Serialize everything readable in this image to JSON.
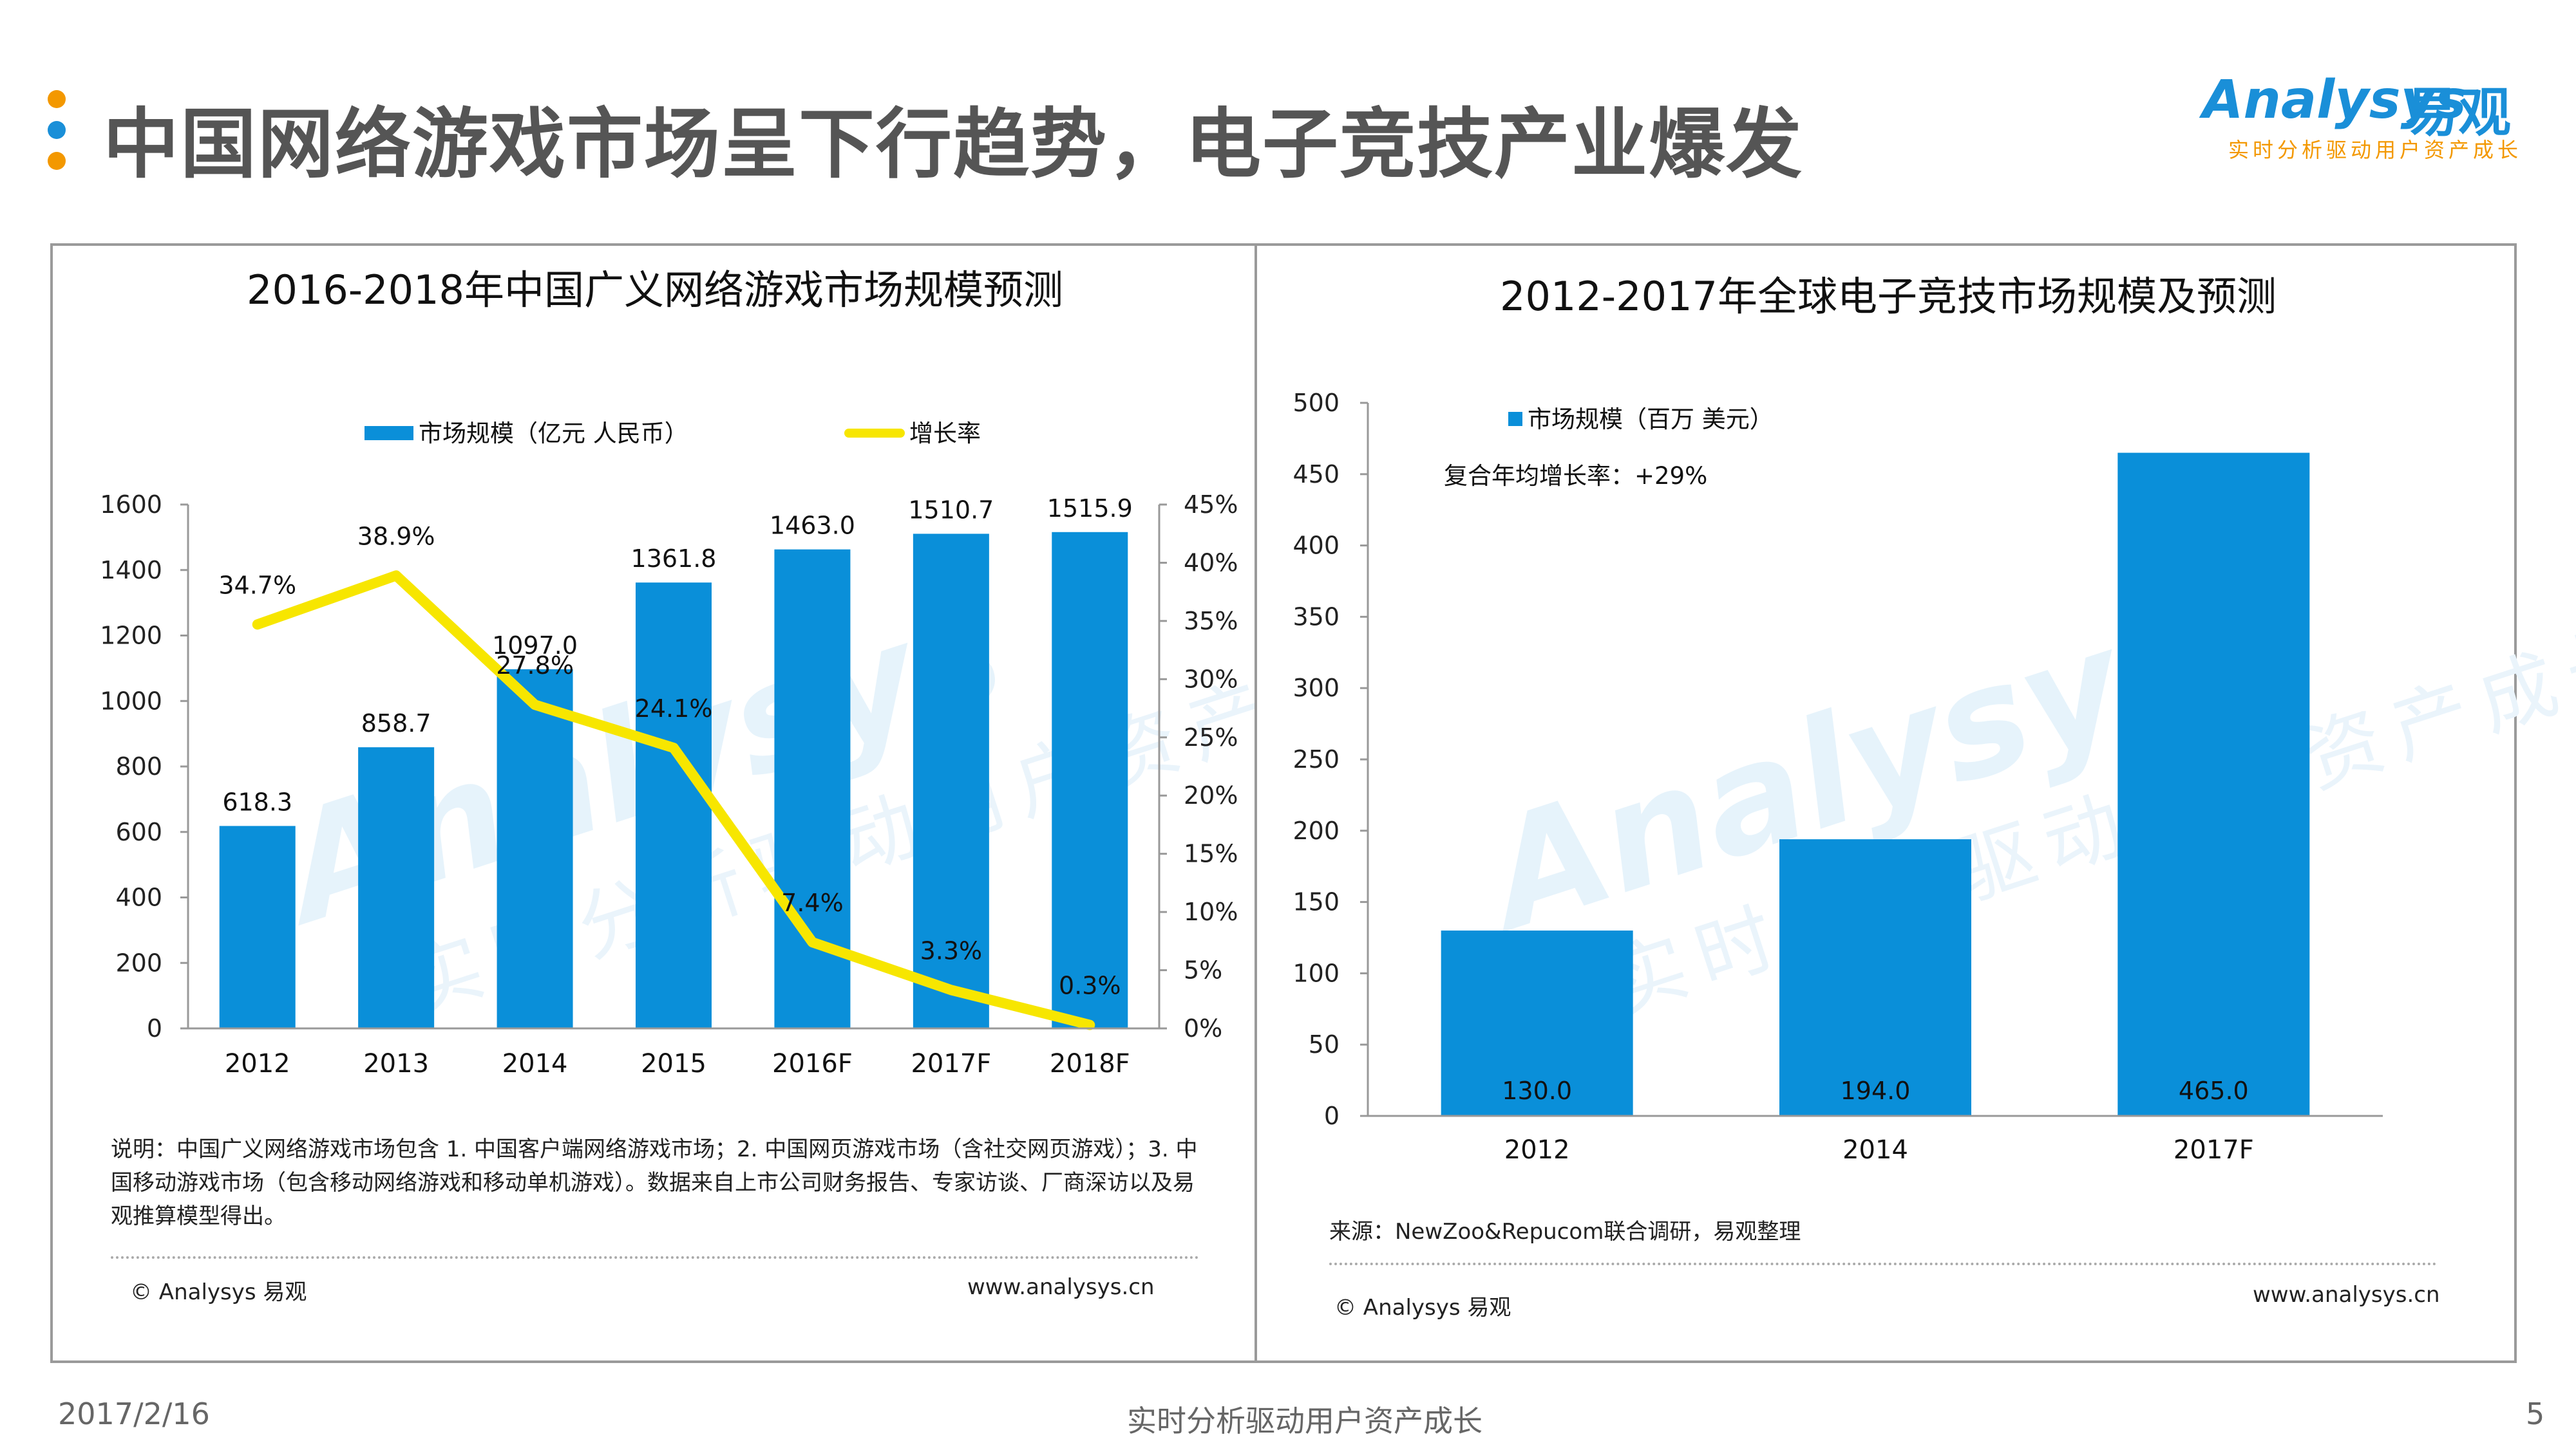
{
  "header": {
    "title": "中国网络游戏市场呈下行趋势，电子竞技产业爆发",
    "logo_word": "Analysys",
    "logo_cn": "易观",
    "logo_slogan": "实时分析驱动用户资产成长",
    "dot_colors": [
      "#f39800",
      "#1a8fd8",
      "#f39800"
    ]
  },
  "left_panel": {
    "note": "说明：中国广义网络游戏市场包含 1. 中国客户端网络游戏市场；2. 中国网页游戏市场（含社交网页游戏）；3. 中国移动游戏市场（包含移动网络游戏和移动单机游戏）。数据来自上市公司财务报告、专家访谈、厂商深访以及易观推算模型得出。",
    "copyright": "© Analysys 易观",
    "url": "www.analysys.cn"
  },
  "right_panel": {
    "source": "来源：NewZoo&Repucom联合调研，易观整理",
    "copyright": "© Analysys 易观",
    "url": "www.analysys.cn"
  },
  "footer": {
    "date": "2017/2/16",
    "slogan": "实时分析驱动用户资产成长",
    "page": "5"
  },
  "chart_data": [
    {
      "type": "bar",
      "title": "2016-2018年中国广义网络游戏市场规模预测",
      "categories": [
        "2012",
        "2013",
        "2014",
        "2015",
        "2016F",
        "2017F",
        "2018F"
      ],
      "series": [
        {
          "name": "市场规模（亿元 人民币）",
          "type": "bar",
          "axis": "left",
          "color": "#0a8fd9",
          "values": [
            618.3,
            858.7,
            1097.0,
            1361.8,
            1463.0,
            1510.7,
            1515.9
          ],
          "labels": [
            "618.3",
            "858.7",
            "1097.0",
            "1361.8",
            "1463.0",
            "1510.7",
            "1515.9"
          ]
        },
        {
          "name": "增长率",
          "type": "line",
          "axis": "right",
          "color": "#f7e600",
          "values": [
            34.7,
            38.9,
            27.8,
            24.1,
            7.4,
            3.3,
            0.3
          ],
          "labels": [
            "34.7%",
            "38.9%",
            "27.8%",
            "24.1%",
            "7.4%",
            "3.3%",
            "0.3%"
          ]
        }
      ],
      "ylim": [
        0,
        1600
      ],
      "yticks": [
        "0",
        "200",
        "400",
        "600",
        "800",
        "1000",
        "1200",
        "1400",
        "1600"
      ],
      "y2lim": [
        0,
        45
      ],
      "y2ticks": [
        "0%",
        "5%",
        "10%",
        "15%",
        "20%",
        "25%",
        "30%",
        "35%",
        "40%",
        "45%"
      ],
      "legend": "top",
      "grid": false
    },
    {
      "type": "bar",
      "title": "2012-2017年全球电子竞技市场规模及预测",
      "categories": [
        "2012",
        "2014",
        "2017F"
      ],
      "series": [
        {
          "name": "市场规模（百万 美元）",
          "color": "#0a8fd9",
          "values": [
            130.0,
            194.0,
            465.0
          ],
          "labels": [
            "130.0",
            "194.0",
            "465.0"
          ]
        }
      ],
      "annotation": "复合年均增长率：+29%",
      "ylim": [
        0,
        500
      ],
      "yticks": [
        "0",
        "50",
        "100",
        "150",
        "200",
        "250",
        "300",
        "350",
        "400",
        "450",
        "500"
      ],
      "legend": "top-left",
      "grid": false
    }
  ]
}
